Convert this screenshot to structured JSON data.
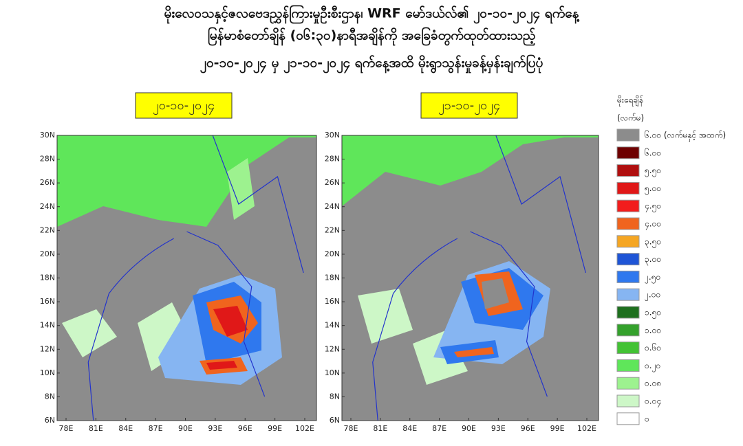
{
  "header": {
    "lines": [
      "မိုးလေဝသနှင့်ဇလဗေဒညွှန်ကြားမှုဦးစီးဌာန၊ WRF မော်ဒယ်လ်၏ ၂၀-၁၀-၂၀၂၄ ရက်နေ့",
      "မြန်မာစံတော်ချိန် (၀၆:၃၀)နာရီအချိန်ကို အခြေခံတွက်ထုတ်ထားသည့်",
      "၂၀-၁၀-၂၀၂၄ မှ ၂၁-၁၀-၂၀၂၄ ရက်နေ့အထိ မိုးရွာသွန်းမှုခန့်မှန်းချက်ပြပုံ"
    ]
  },
  "panels": [
    {
      "date": "၂၀-၁၀-၂၀၂၄",
      "lat_ticks": [
        "30N",
        "28N",
        "26N",
        "24N",
        "22N",
        "20N",
        "18N",
        "16N",
        "14N",
        "12N",
        "10N",
        "8N",
        "6N"
      ],
      "lon_ticks": [
        "78E",
        "81E",
        "84E",
        "87E",
        "90E",
        "93E",
        "96E",
        "99E",
        "102E"
      ]
    },
    {
      "date": "၂၁-၁၀-၂၀၂၄",
      "lat_ticks": [
        "30N",
        "28N",
        "26N",
        "24N",
        "22N",
        "20N",
        "18N",
        "16N",
        "14N",
        "12N",
        "10N",
        "8N",
        "6N"
      ],
      "lon_ticks": [
        "78E",
        "81E",
        "84E",
        "87E",
        "90E",
        "93E",
        "96E",
        "99E",
        "102E"
      ]
    }
  ],
  "legend": {
    "title": "မိုးရေချိန်",
    "unit": "(လက်မ)",
    "items": [
      {
        "label": "၆.၀၀ (လက်မနှင့် အထက်)",
        "color": "#8c8c8c"
      },
      {
        "label": "၆.၀၀",
        "color": "#6e0000"
      },
      {
        "label": "၅.၅၀",
        "color": "#b00f0f"
      },
      {
        "label": "၅.၀၀",
        "color": "#e01818"
      },
      {
        "label": "၄.၅၀",
        "color": "#f21d1d"
      },
      {
        "label": "၄.၀၀",
        "color": "#f0641e"
      },
      {
        "label": "၃.၅၀",
        "color": "#f5a623"
      },
      {
        "label": "၃.၀၀",
        "color": "#1f55d6"
      },
      {
        "label": "၂.၅၀",
        "color": "#2f78ee"
      },
      {
        "label": "၂.၀၀",
        "color": "#86b5f2"
      },
      {
        "label": "၁.၅၀",
        "color": "#1e6f1e"
      },
      {
        "label": "၁.၀၀",
        "color": "#34a12c"
      },
      {
        "label": "၀.၆၀",
        "color": "#43c235"
      },
      {
        "label": "၀.၂၀",
        "color": "#5fe65a"
      },
      {
        "label": "၀.၀၈",
        "color": "#9df28f"
      },
      {
        "label": "၀.၀၄",
        "color": "#cdf7c7"
      },
      {
        "label": "၀",
        "color": "#ffffff"
      }
    ]
  }
}
